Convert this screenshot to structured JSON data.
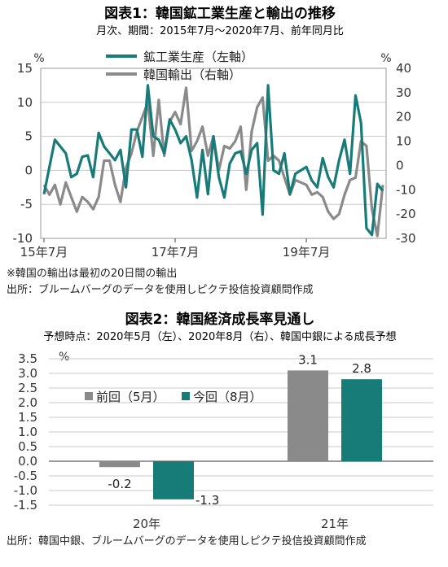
{
  "colors": {
    "teal": "#177b78",
    "gray": "#8a8a8a",
    "grid": "#c8c8c8",
    "axis": "#444444"
  },
  "chart1": {
    "title": "図表1：韓国鉱工業生産と輸出の推移",
    "subtitle": "月次、期間：2015年7月～2020年7月、前年同月比",
    "left_unit": "%",
    "right_unit": "%",
    "left_ticks": [
      "15",
      "10",
      "5",
      "0",
      "-5",
      "-10"
    ],
    "right_ticks": [
      "40",
      "30",
      "20",
      "10",
      "0",
      "-10",
      "-20",
      "-30"
    ],
    "x_ticks": [
      "15年7月",
      "17年7月",
      "19年7月"
    ],
    "legend": [
      "鉱工業生産（左軸）",
      "韓国輸出（右軸）"
    ],
    "note1": "※韓国の輸出は最初の20日間の輸出",
    "note2": "出所：ブルームバーグのデータを使用しピクテ投信投資顧問作成"
  },
  "chart2": {
    "title": "図表2：韓国経済成長率見通し",
    "subtitle": "予想時点：2020年5月（左）、2020年8月（右）、韓国中銀による成長予想",
    "unit": "%",
    "y_ticks": [
      "3.5",
      "3.0",
      "2.5",
      "2.0",
      "1.5",
      "1.0",
      "0.5",
      "0.0",
      "-0.5",
      "-1.0",
      "-1.5"
    ],
    "legend": [
      "前回（5月）",
      "今回（8月）"
    ],
    "categories": [
      "20年",
      "21年"
    ],
    "value_labels": [
      [
        "-0.2",
        "-1.3"
      ],
      [
        "3.1",
        "2.8"
      ]
    ],
    "note": "出所：韓国中銀、ブルームバーグのデータを使用しピクテ投信投資顧問作成"
  },
  "chart_data": [
    {
      "type": "line",
      "title": "図表1：韓国鉱工業生産と輸出の推移",
      "subtitle": "月次、期間：2015年7月～2020年7月、前年同月比",
      "x_start": "2015-07",
      "x_end": "2020-07",
      "ylim_left": [
        -10,
        15
      ],
      "ylim_right": [
        -30,
        40
      ],
      "series": [
        {
          "name": "鉱工業生産（左軸）",
          "axis": "left",
          "values": [
            -3.5,
            0.5,
            4.5,
            3.5,
            2.5,
            -1.0,
            -0.5,
            2.0,
            2.2,
            -1.0,
            5.5,
            3.5,
            2.5,
            1.5,
            3.0,
            -2.5,
            6.0,
            6.0,
            2.0,
            12.5,
            5.0,
            4.5,
            2.5,
            7.5,
            6.0,
            4.0,
            5.0,
            1.5,
            -4.0,
            3.0,
            -3.5,
            5.0,
            -1.0,
            -4.0,
            1.0,
            2.5,
            2.8,
            -0.5,
            3.0,
            4.0,
            -6.5,
            12.5,
            0.0,
            -0.5,
            2.5,
            -3.5,
            -0.5,
            0.0,
            0.5,
            -1.5,
            -2.5,
            1.8,
            -1.0,
            -2.5,
            1.5,
            4.5,
            -0.5,
            11.0,
            7.0,
            -8.5,
            -9.5,
            -2.0,
            -3.0
          ]
        },
        {
          "name": "韓国輸出（右軸）",
          "axis": "right",
          "values": [
            -8,
            -12,
            -8,
            -16,
            -7,
            -13,
            -19,
            -13,
            -15,
            -18,
            -13,
            2,
            2,
            -8,
            -15,
            -1,
            5,
            14,
            20,
            26,
            4,
            27,
            4,
            18,
            22,
            17,
            32,
            6,
            10,
            16,
            4,
            12,
            -2,
            8,
            7,
            10,
            16,
            -10,
            14,
            24,
            28,
            2,
            4,
            2,
            -5,
            -12,
            -6,
            -7,
            -8,
            -12,
            -11,
            -13,
            -19,
            -22,
            -20,
            -12,
            -6,
            -5,
            10,
            8,
            -18,
            -29,
            -8
          ]
        }
      ]
    },
    {
      "type": "bar",
      "title": "図表2：韓国経済成長率見通し",
      "subtitle": "予想時点：2020年5月（左）、2020年8月（右）、韓国中銀による成長予想",
      "categories": [
        "20年",
        "21年"
      ],
      "series": [
        {
          "name": "前回（5月）",
          "values": [
            -0.2,
            3.1
          ]
        },
        {
          "name": "今回（8月）",
          "values": [
            -1.3,
            2.8
          ]
        }
      ],
      "ylim": [
        -1.5,
        3.5
      ],
      "ylabel": "%"
    }
  ]
}
